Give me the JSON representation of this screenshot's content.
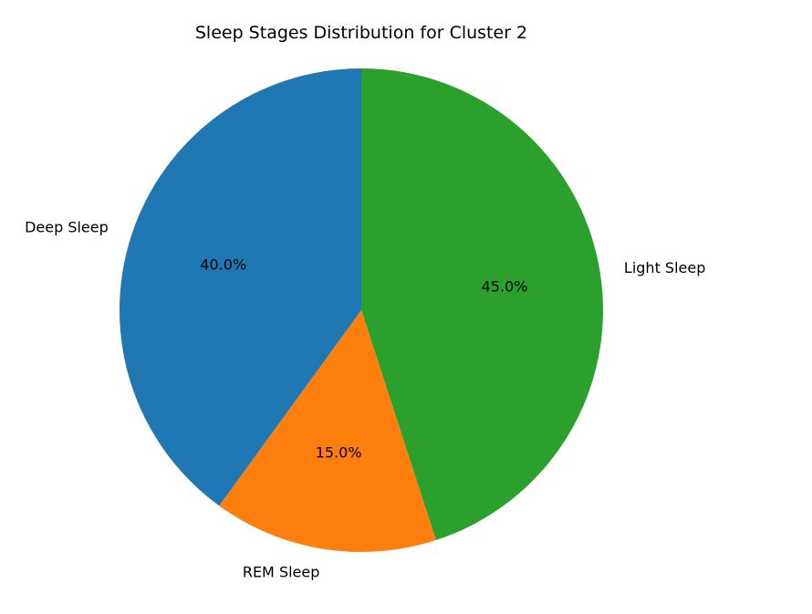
{
  "chart_data": {
    "type": "pie",
    "title": "Sleep Stages Distribution for Cluster 2",
    "slices": [
      {
        "label": "Light Sleep",
        "value": 45.0,
        "pct_label": "45.0%",
        "color": "#2ca02c"
      },
      {
        "label": "REM Sleep",
        "value": 15.0,
        "pct_label": "15.0%",
        "color": "#ff7f0e"
      },
      {
        "label": "Deep Sleep",
        "value": 40.0,
        "pct_label": "40.0%",
        "color": "#1f77b4"
      }
    ],
    "start_angle": "top",
    "direction": "clockwise",
    "legend": "none"
  }
}
